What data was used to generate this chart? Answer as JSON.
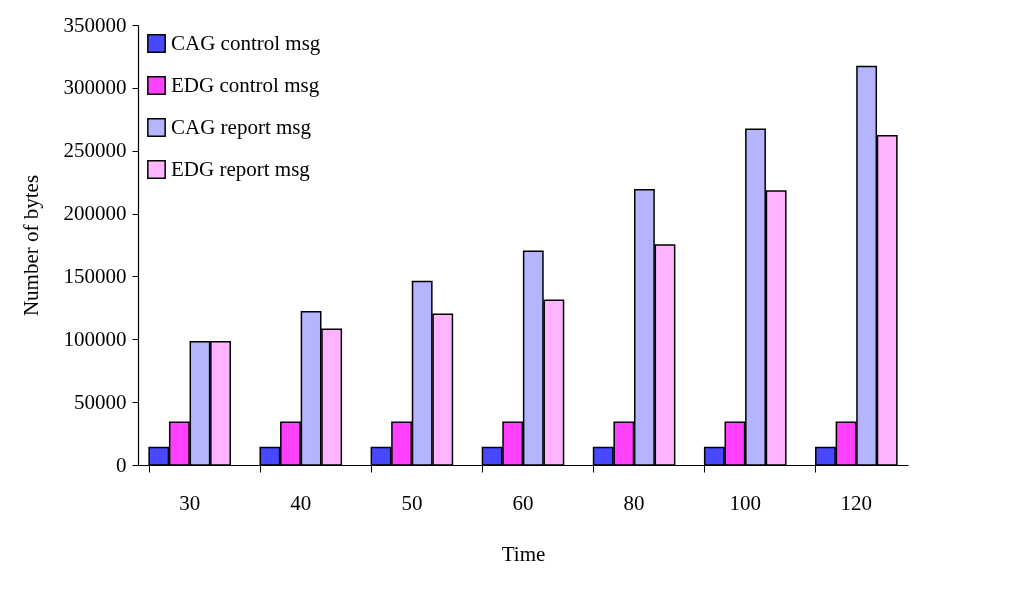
{
  "chart_data": {
    "type": "bar",
    "xlabel": "Time",
    "ylabel": "Number of bytes",
    "categories": [
      "30",
      "40",
      "50",
      "60",
      "80",
      "100",
      "120"
    ],
    "series": [
      {
        "name": "CAG control msg",
        "color": "#4848ff",
        "values": [
          14000,
          14000,
          14000,
          14000,
          14000,
          14000,
          14000
        ]
      },
      {
        "name": "EDG control msg",
        "color": "#ff40ff",
        "values": [
          34000,
          34000,
          34000,
          34000,
          34000,
          34000,
          34000
        ]
      },
      {
        "name": "CAG report msg",
        "color": "#b4b4ff",
        "values": [
          98000,
          122000,
          146000,
          170000,
          219000,
          267000,
          317000
        ]
      },
      {
        "name": "EDG report msg",
        "color": "#ffb4ff",
        "values": [
          98000,
          108000,
          120000,
          131000,
          175000,
          218000,
          262000
        ]
      }
    ],
    "ylim": [
      0,
      350000
    ],
    "yticks": [
      0,
      50000,
      100000,
      150000,
      200000,
      250000,
      300000,
      350000
    ],
    "grid": false,
    "legend": "top left"
  }
}
